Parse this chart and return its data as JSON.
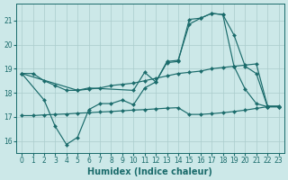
{
  "bg_color": "#cce8e8",
  "line_color": "#1a6b6b",
  "grid_color": "#aacccc",
  "xlabel": "Humidex (Indice chaleur)",
  "xlim": [
    -0.5,
    23.5
  ],
  "ylim": [
    15.5,
    21.7
  ],
  "yticks": [
    16,
    17,
    18,
    19,
    20,
    21
  ],
  "xticks": [
    0,
    1,
    2,
    3,
    4,
    5,
    6,
    7,
    8,
    9,
    10,
    11,
    12,
    13,
    14,
    15,
    16,
    17,
    18,
    19,
    20,
    21,
    22,
    23
  ],
  "lines": [
    {
      "x": [
        0,
        1,
        2,
        3,
        4,
        5,
        6,
        7,
        8,
        9,
        10,
        11,
        12,
        13,
        14,
        15,
        16,
        17,
        18,
        19,
        20,
        21,
        22,
        23
      ],
      "y": [
        18.8,
        18.8,
        18.5,
        18.3,
        18.1,
        18.1,
        18.15,
        18.2,
        18.3,
        18.35,
        18.4,
        18.5,
        18.6,
        18.7,
        18.8,
        18.85,
        18.9,
        19.0,
        19.05,
        19.1,
        19.15,
        19.2,
        17.45,
        17.45
      ]
    },
    {
      "x": [
        0,
        2,
        3,
        4,
        5,
        6,
        7,
        8,
        9,
        10,
        11,
        12,
        13,
        14,
        15,
        16,
        17,
        18,
        19,
        20,
        21,
        22,
        23
      ],
      "y": [
        18.8,
        17.7,
        16.6,
        15.85,
        16.15,
        17.3,
        17.55,
        17.55,
        17.7,
        17.5,
        18.2,
        18.45,
        19.3,
        19.35,
        20.85,
        21.1,
        21.3,
        21.25,
        19.1,
        18.15,
        17.55,
        17.42,
        17.42
      ]
    },
    {
      "x": [
        0,
        5,
        6,
        10,
        11,
        12,
        13,
        14,
        15,
        16,
        17,
        18,
        19,
        20,
        21,
        22,
        23
      ],
      "y": [
        18.8,
        18.1,
        18.2,
        18.1,
        18.85,
        18.45,
        19.25,
        19.3,
        21.05,
        21.1,
        21.3,
        21.25,
        20.4,
        19.1,
        18.8,
        17.42,
        17.42
      ]
    },
    {
      "x": [
        0,
        1,
        2,
        3,
        4,
        5,
        6,
        7,
        8,
        9,
        10,
        11,
        12,
        13,
        14,
        15,
        16,
        17,
        18,
        19,
        20,
        21,
        22,
        23
      ],
      "y": [
        17.05,
        17.05,
        17.08,
        17.1,
        17.12,
        17.15,
        17.17,
        17.2,
        17.22,
        17.25,
        17.28,
        17.3,
        17.33,
        17.36,
        17.38,
        17.1,
        17.1,
        17.13,
        17.17,
        17.22,
        17.28,
        17.35,
        17.42,
        17.42
      ]
    }
  ]
}
